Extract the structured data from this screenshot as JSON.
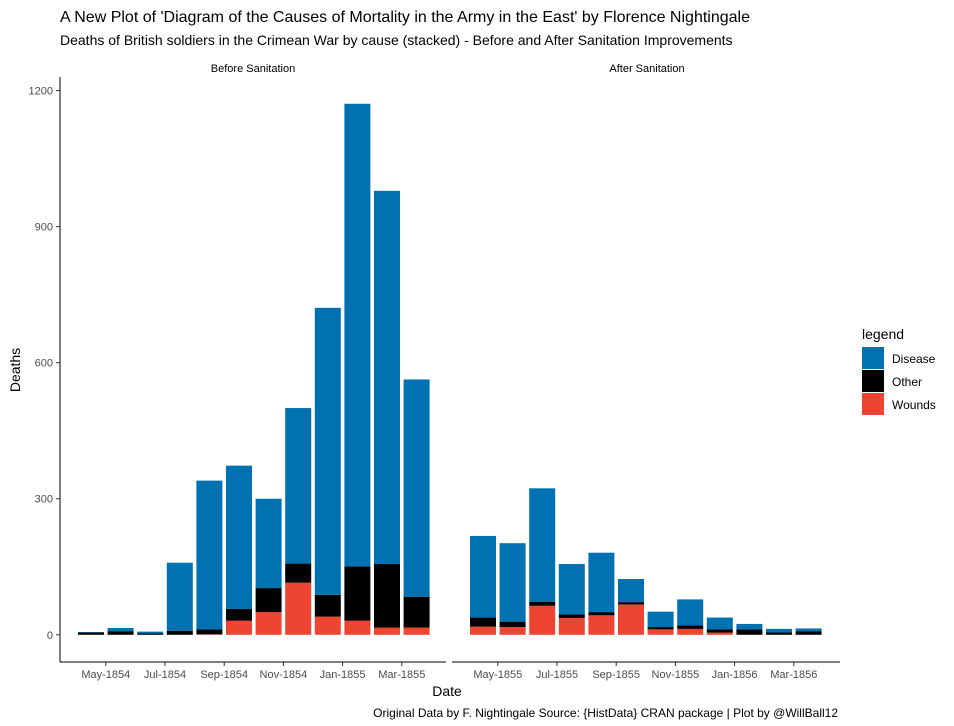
{
  "chart_data": {
    "type": "bar",
    "stacked": true,
    "title": "A New Plot of 'Diagram of the Causes of Mortality in the Army in the East' by Florence Nightingale",
    "subtitle": "Deaths of British soldiers in the Crimean War by cause (stacked) - Before and After Sanitation Improvements",
    "xlabel": "Date",
    "ylabel": "Deaths",
    "caption": "Original Data by F. Nightingale Source: {HistData} CRAN package | Plot by @WillBall12",
    "ylim": [
      -60,
      1230
    ],
    "yticks": [
      0,
      300,
      600,
      900,
      1200
    ],
    "grid": false,
    "legend": {
      "title": "legend",
      "position": "right",
      "items": [
        {
          "name": "Disease",
          "color": "#0072B2"
        },
        {
          "name": "Other",
          "color": "#000000"
        },
        {
          "name": "Wounds",
          "color": "#EE4432"
        }
      ]
    },
    "panels": [
      {
        "label": "Before Sanitation",
        "xticks": [
          "May-1854",
          "Jul-1854",
          "Sep-1854",
          "Nov-1854",
          "Jan-1855",
          "Mar-1855"
        ],
        "categories": [
          "Apr-1854",
          "May-1854",
          "Jun-1854",
          "Jul-1854",
          "Aug-1854",
          "Sep-1854",
          "Oct-1854",
          "Nov-1854",
          "Dec-1854",
          "Jan-1855",
          "Feb-1855",
          "Mar-1855"
        ],
        "series": [
          {
            "name": "Wounds",
            "values": [
              0,
              0,
              0,
              0,
              1,
              31,
              50,
              115,
              40,
              31,
              16,
              16
            ]
          },
          {
            "name": "Other",
            "values": [
              5,
              8,
              3,
              9,
              11,
              26,
              53,
              42,
              48,
              120,
              140,
              68
            ]
          },
          {
            "name": "Disease",
            "values": [
              1,
              7,
              4,
              150,
              328,
              316,
              197,
              343,
              633,
              1020,
              823,
              479
            ]
          }
        ]
      },
      {
        "label": "After Sanitation",
        "xticks": [
          "May-1855",
          "Jul-1855",
          "Sep-1855",
          "Nov-1855",
          "Jan-1856",
          "Mar-1856"
        ],
        "categories": [
          "Apr-1855",
          "May-1855",
          "Jun-1855",
          "Jul-1855",
          "Aug-1855",
          "Sep-1855",
          "Oct-1855",
          "Nov-1855",
          "Dec-1855",
          "Jan-1856",
          "Feb-1856",
          "Mar-1856"
        ],
        "series": [
          {
            "name": "Wounds",
            "values": [
              18,
              17,
              64,
              37,
              43,
              67,
              12,
              13,
              5,
              0,
              0,
              0
            ]
          },
          {
            "name": "Other",
            "values": [
              20,
              12,
              9,
              8,
              7,
              5,
              5,
              8,
              7,
              12,
              5,
              8
            ]
          },
          {
            "name": "Disease",
            "values": [
              180,
              173,
              250,
              111,
              131,
              51,
              34,
              57,
              26,
              12,
              8,
              6
            ]
          }
        ]
      }
    ]
  }
}
